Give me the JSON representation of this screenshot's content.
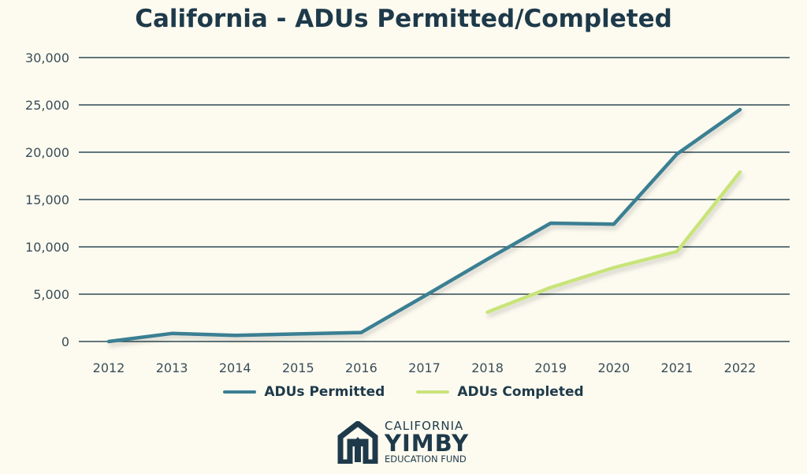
{
  "chart_data": {
    "type": "line",
    "title": "California - ADUs Permitted/Completed",
    "xlabel": "",
    "ylabel": "",
    "x": [
      2012,
      2013,
      2014,
      2015,
      2016,
      2017,
      2018,
      2019,
      2020,
      2021,
      2022
    ],
    "ylim": [
      0,
      30000
    ],
    "yticks": [
      0,
      5000,
      10000,
      15000,
      20000,
      25000,
      30000
    ],
    "ytick_labels": [
      "0",
      "5,000",
      "10,000",
      "15,000",
      "20,000",
      "25,000",
      "30,000"
    ],
    "grid": "horizontal",
    "legend_position": "bottom",
    "series": [
      {
        "name": "ADUs Permitted",
        "color": "#3a7f93",
        "values": [
          0,
          850,
          650,
          800,
          950,
          4800,
          8700,
          12500,
          12400,
          19800,
          24500
        ]
      },
      {
        "name": "ADUs Completed",
        "color": "#c8e47a",
        "values": [
          null,
          null,
          null,
          null,
          null,
          null,
          3100,
          5700,
          7800,
          9500,
          17900
        ]
      }
    ]
  },
  "logo": {
    "line1": "CALIFORNIA",
    "line2": "YIMBY",
    "line3": "EDUCATION FUND"
  },
  "colors": {
    "background": "#fdfbf0",
    "text": "#1e3a4a",
    "grid": "#2f4a55"
  }
}
